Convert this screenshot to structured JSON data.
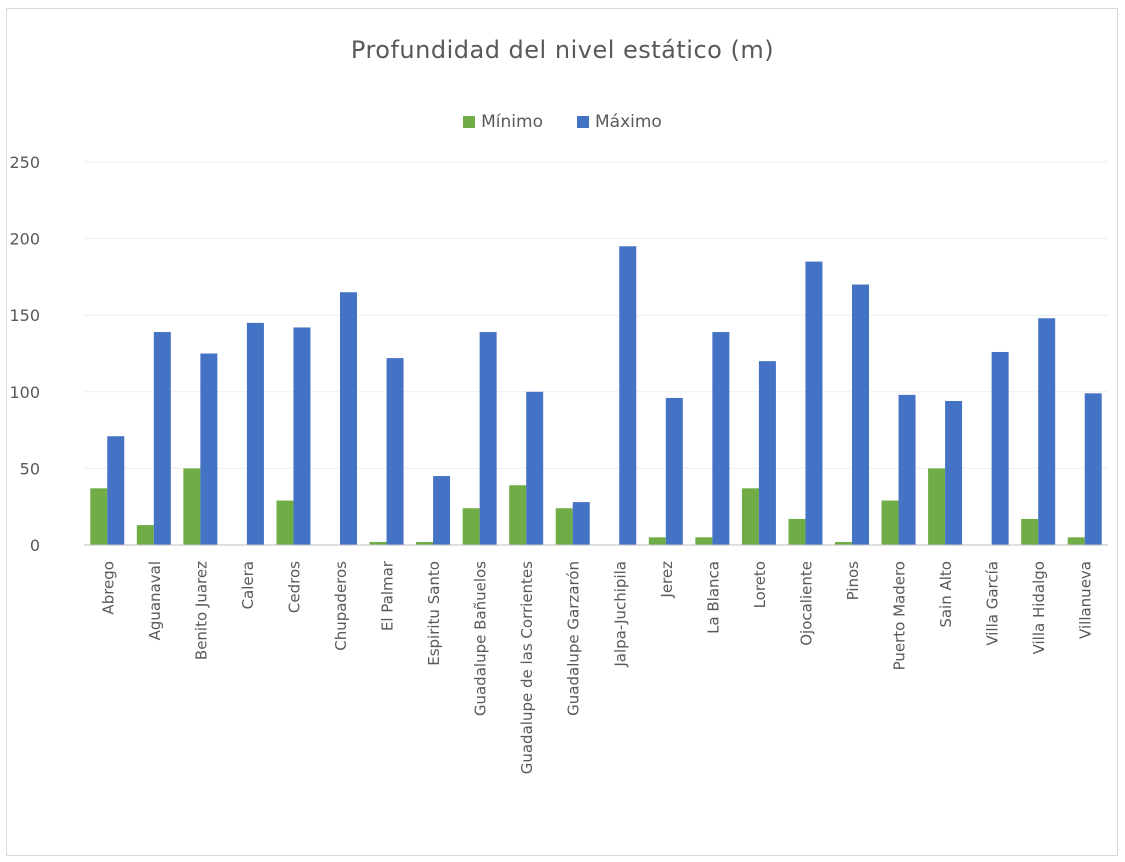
{
  "chart_data": {
    "type": "bar",
    "title": "Profundidad del nivel estático (m)",
    "xlabel": "",
    "ylabel": "",
    "ylim": [
      0,
      250
    ],
    "yticks": [
      0,
      50,
      100,
      150,
      200,
      250
    ],
    "grid": true,
    "legend_position": "top",
    "categories": [
      "Abrego",
      "Aguanaval",
      "Benito Juarez",
      "Calera",
      "Cedros",
      "Chupaderos",
      "El Palmar",
      "Espiritu Santo",
      "Guadalupe Bañuelos",
      "Guadalupe de las Corrientes",
      "Guadalupe Garzarón",
      "Jalpa-Juchipila",
      "Jerez",
      "La Blanca",
      "Loreto",
      "Ojocaliente",
      "Pinos",
      "Puerto Madero",
      "Sain Alto",
      "Villa García",
      "Villa Hidalgo",
      "Villanueva"
    ],
    "series": [
      {
        "name": "Mínimo",
        "color": "#70ad47",
        "values": [
          37,
          13,
          50,
          0,
          29,
          0,
          2,
          2,
          24,
          39,
          24,
          0,
          5,
          5,
          37,
          17,
          2,
          29,
          50,
          0,
          17,
          5
        ]
      },
      {
        "name": "Máximo",
        "color": "#4472c4",
        "values": [
          71,
          139,
          125,
          145,
          142,
          165,
          122,
          45,
          139,
          100,
          28,
          195,
          96,
          139,
          120,
          185,
          170,
          98,
          94,
          126,
          148,
          99
        ]
      }
    ]
  }
}
